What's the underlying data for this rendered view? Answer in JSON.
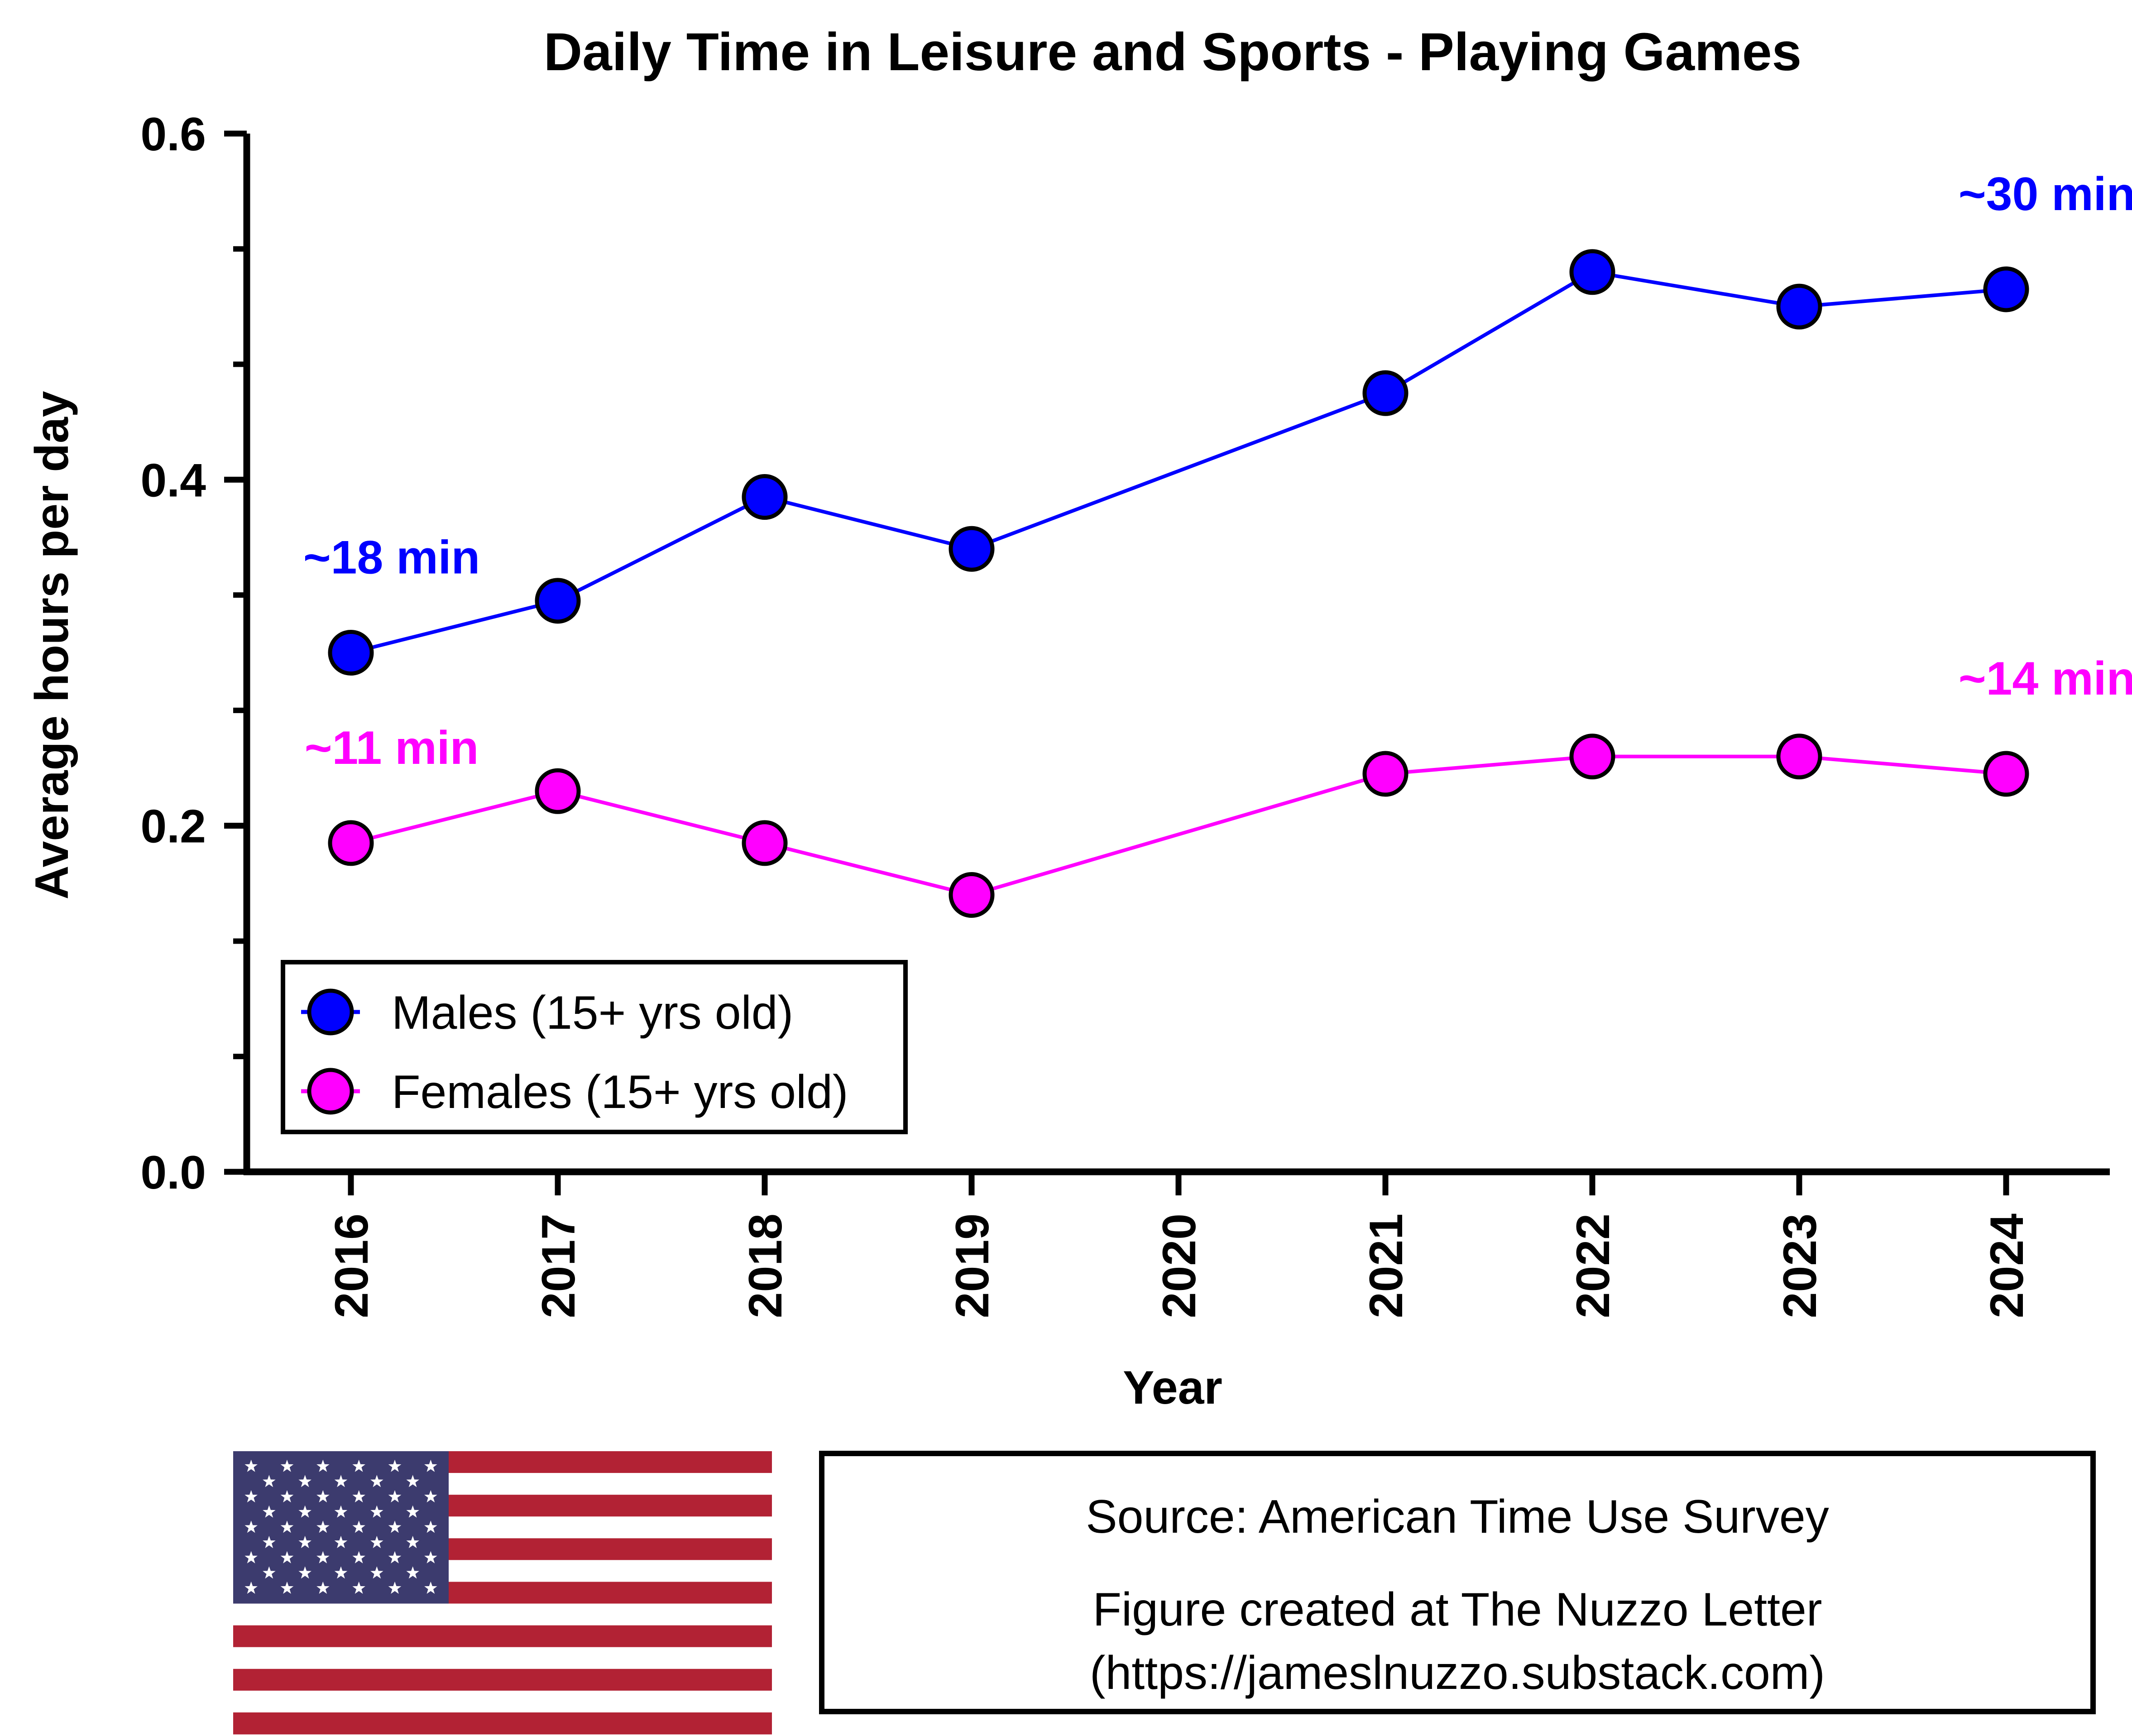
{
  "chart_data": {
    "type": "line",
    "title": "Daily Time in Leisure and Sports - Playing Games",
    "xlabel": "Year",
    "ylabel": "Average hours per day",
    "ylim": [
      0,
      0.6
    ],
    "yticks": [
      "0.0",
      "0.2",
      "0.4",
      "0.6"
    ],
    "categories": [
      "2016",
      "2017",
      "2018",
      "2019",
      "2020",
      "2021",
      "2022",
      "2023",
      "2024"
    ],
    "series": [
      {
        "name": "Males (15+ yrs old)",
        "color": "#0000ff",
        "values": [
          0.3,
          0.33,
          0.39,
          0.36,
          null,
          0.45,
          0.52,
          0.5,
          0.51
        ]
      },
      {
        "name": "Females (15+ yrs old)",
        "color": "#ff00ff",
        "values": [
          0.19,
          0.22,
          0.19,
          0.16,
          null,
          0.23,
          0.24,
          0.24,
          0.23
        ]
      }
    ],
    "annotations": [
      {
        "text": "~18 min",
        "series": 0,
        "year": "2016"
      },
      {
        "text": "~30 min",
        "series": 0,
        "year": "2024"
      },
      {
        "text": "~11 min",
        "series": 1,
        "year": "2016"
      },
      {
        "text": "~14 min",
        "series": 1,
        "year": "2024"
      }
    ],
    "grid": false,
    "legend_position": "bottom-left"
  },
  "footer": {
    "flag_icon": "us-flag-icon",
    "source_line": "Source: American Time Use Survey",
    "credit_line": "Figure created at The Nuzzo Letter",
    "credit_url": "(https://jameslnuzzo.substack.com)"
  }
}
